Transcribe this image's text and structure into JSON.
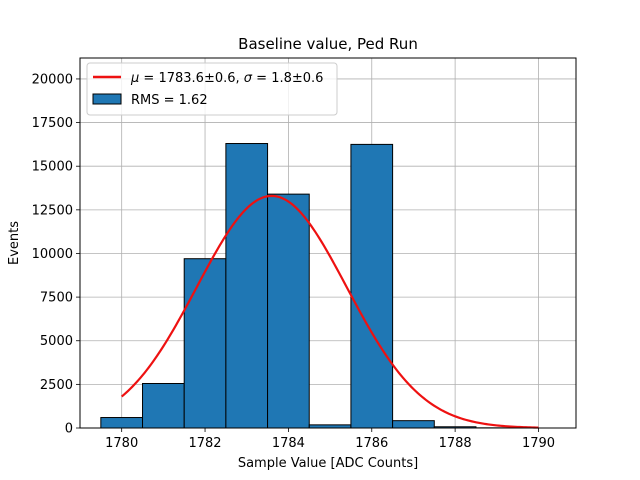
{
  "chart_data": {
    "type": "bar",
    "title": "Baseline value, Ped Run",
    "xlabel": "Sample Value [ADC Counts]",
    "ylabel": "Events",
    "xlim": [
      1779.0,
      1790.9
    ],
    "ylim": [
      0,
      21200
    ],
    "xticks": [
      1780,
      1782,
      1784,
      1786,
      1788,
      1790
    ],
    "yticks": [
      0,
      2500,
      5000,
      7500,
      10000,
      12500,
      15000,
      17500,
      20000
    ],
    "grid": true,
    "legend_position": "top-left",
    "histogram": {
      "name": "RMS = 1.62",
      "color": "#1f77b4",
      "bins": [
        {
          "x0": 1779.5,
          "x1": 1780.5,
          "count": 600
        },
        {
          "x0": 1780.5,
          "x1": 1781.5,
          "count": 2550
        },
        {
          "x0": 1781.5,
          "x1": 1782.5,
          "count": 9700
        },
        {
          "x0": 1782.5,
          "x1": 1783.5,
          "count": 16300
        },
        {
          "x0": 1783.5,
          "x1": 1784.5,
          "count": 13400
        },
        {
          "x0": 1784.5,
          "x1": 1785.5,
          "count": 180
        },
        {
          "x0": 1785.5,
          "x1": 1786.5,
          "count": 16250
        },
        {
          "x0": 1786.5,
          "x1": 1787.5,
          "count": 420
        },
        {
          "x0": 1787.5,
          "x1": 1788.5,
          "count": 70
        },
        {
          "x0": 1788.5,
          "x1": 1789.5,
          "count": 10
        }
      ]
    },
    "fit": {
      "name_mu": "μ",
      "name_mu_val": "1783.6±0.6, ",
      "name_sigma": "σ",
      "name_sigma_val": "1.8±0.6",
      "color": "#ee1111",
      "amplitude": 13300,
      "mean": 1783.6,
      "sigma": 1.8,
      "x_range": [
        1780,
        1790
      ]
    }
  }
}
